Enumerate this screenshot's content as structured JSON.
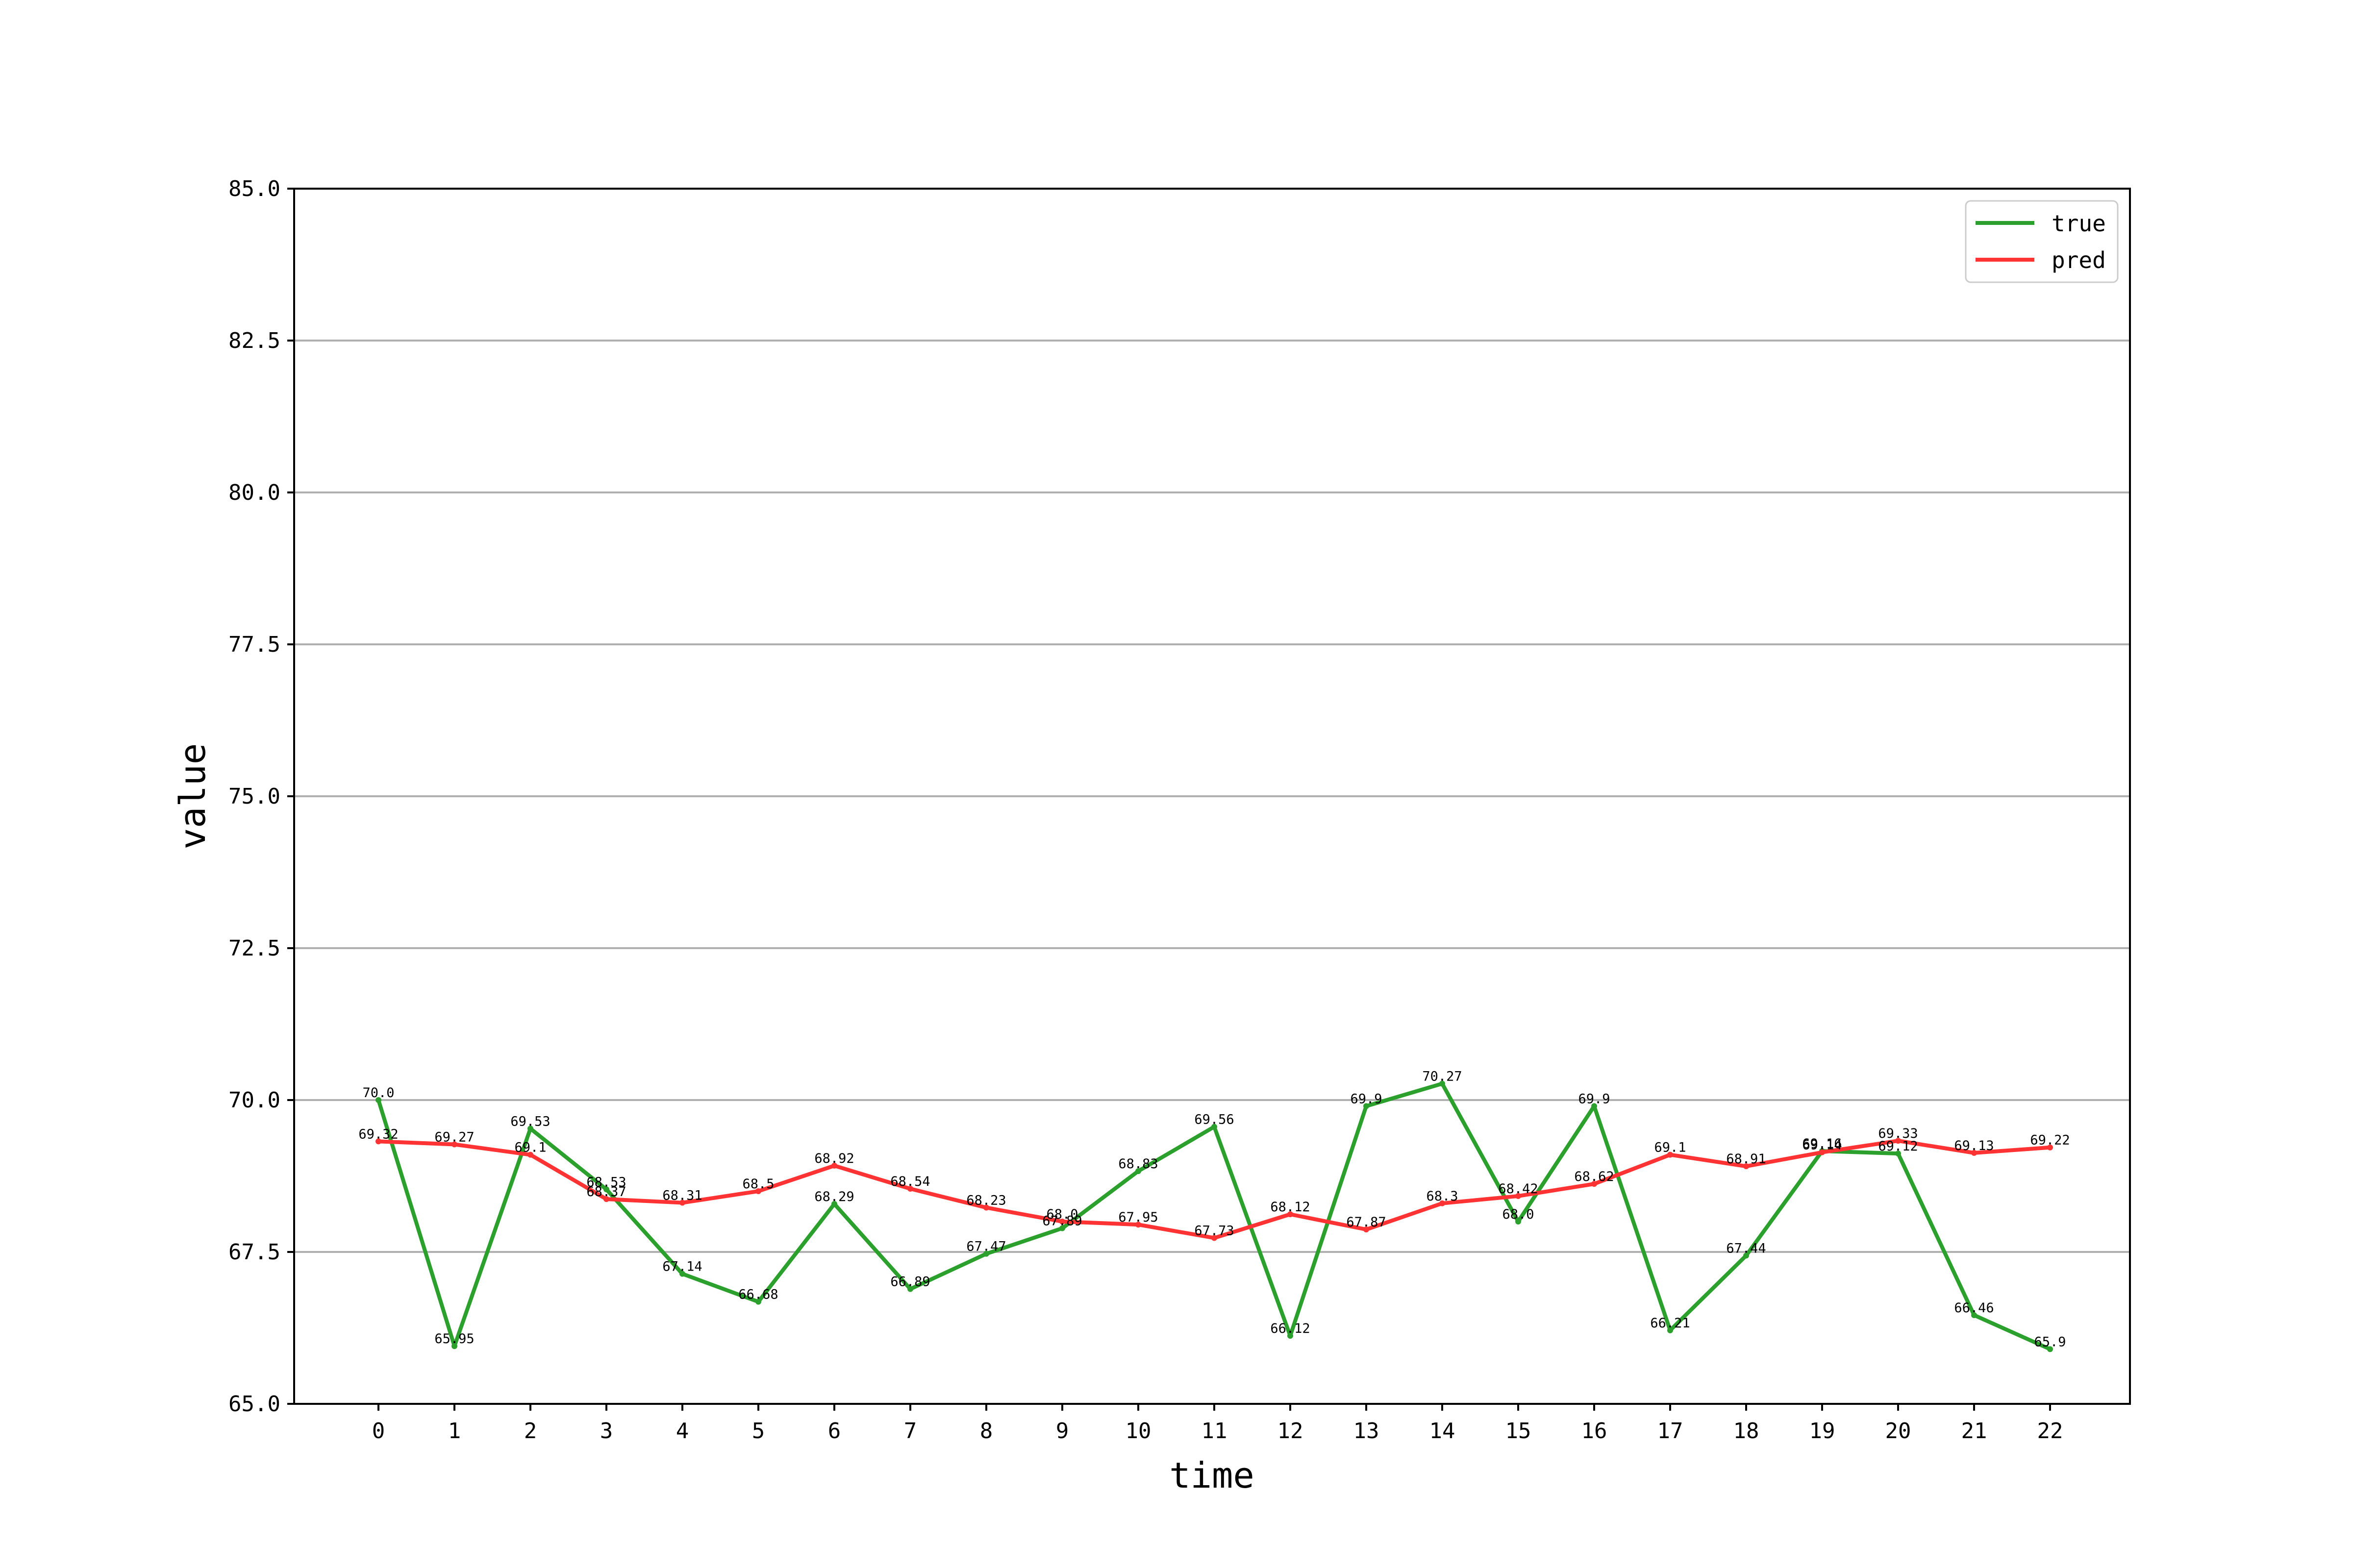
{
  "chart_data": {
    "type": "line",
    "xlabel": "time",
    "ylabel": "value",
    "x": [
      0,
      1,
      2,
      3,
      4,
      5,
      6,
      7,
      8,
      9,
      10,
      11,
      12,
      13,
      14,
      15,
      16,
      17,
      18,
      19,
      20,
      21,
      22
    ],
    "ylim": [
      65.0,
      85.0
    ],
    "yticks": [
      "65.0",
      "67.5",
      "70.0",
      "72.5",
      "75.0",
      "77.5",
      "80.0",
      "82.5",
      "85.0"
    ],
    "yticks_values": [
      65.0,
      67.5,
      70.0,
      72.5,
      75.0,
      77.5,
      80.0,
      82.5,
      85.0
    ],
    "xticks": [
      "0",
      "1",
      "2",
      "3",
      "4",
      "5",
      "6",
      "7",
      "8",
      "9",
      "10",
      "11",
      "12",
      "13",
      "14",
      "15",
      "16",
      "17",
      "18",
      "19",
      "20",
      "21",
      "22"
    ],
    "grid": "horizontal",
    "legend_position": "top-right",
    "series": [
      {
        "name": "true",
        "color": "#2ca02c",
        "values": [
          70.0,
          65.95,
          69.53,
          68.53,
          67.14,
          66.68,
          68.29,
          66.89,
          67.47,
          67.89,
          68.83,
          69.56,
          66.12,
          69.9,
          70.27,
          68.0,
          69.9,
          66.21,
          67.44,
          69.16,
          69.12,
          66.46,
          65.9
        ],
        "labels": [
          "70.0",
          "65.95",
          "69.53",
          "68.53",
          "67.14",
          "66.68",
          "68.29",
          "66.89",
          "67.47",
          "67.89",
          "68.83",
          "69.56",
          "66.12",
          "69.9",
          "70.27",
          "68.0",
          "69.9",
          "66.21",
          "67.44",
          "69.16",
          "69.12",
          "66.46",
          "65.9"
        ]
      },
      {
        "name": "pred",
        "color": "#ff3333",
        "values": [
          69.32,
          69.27,
          69.1,
          68.37,
          68.31,
          68.5,
          68.92,
          68.54,
          68.23,
          68.0,
          67.95,
          67.73,
          68.12,
          67.87,
          68.3,
          68.42,
          68.62,
          69.1,
          68.91,
          69.14,
          69.33,
          69.13,
          69.22
        ],
        "labels": [
          "69.32",
          "69.27",
          "69.1",
          "68.37",
          "68.31",
          "68.5",
          "68.92",
          "68.54",
          "68.23",
          "68.0",
          "67.95",
          "67.73",
          "68.12",
          "67.87",
          "68.3",
          "68.42",
          "68.62",
          "69.1",
          "68.91",
          "69.14",
          "69.33",
          "69.13",
          "69.22"
        ]
      }
    ]
  }
}
